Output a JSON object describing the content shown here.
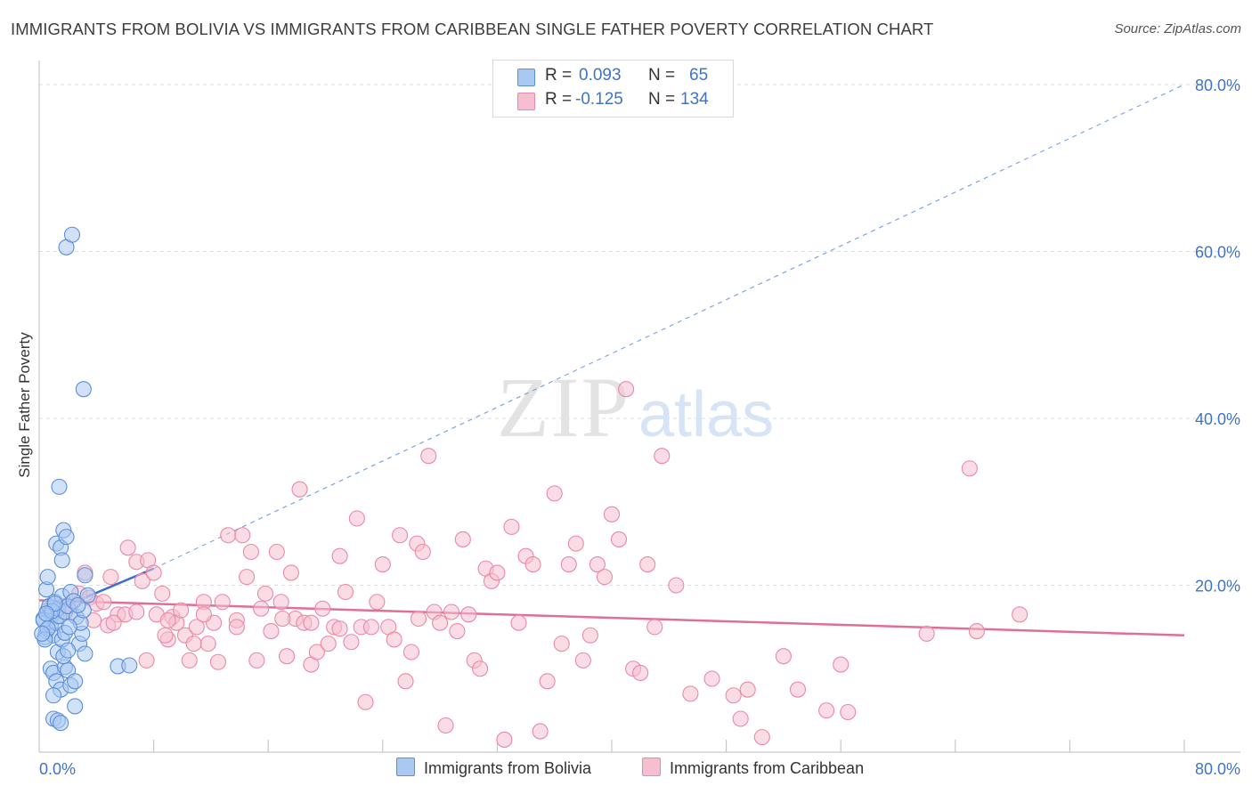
{
  "title": "IMMIGRANTS FROM BOLIVIA VS IMMIGRANTS FROM CARIBBEAN SINGLE FATHER POVERTY CORRELATION CHART",
  "source": "Source: ZipAtlas.com",
  "watermark": {
    "zip": "ZIP",
    "atlas": "atlas"
  },
  "colors": {
    "bolivia_fill": "#a9c8f2",
    "bolivia_stroke": "#5b8fd9",
    "bolivia_line": "#3a6fcb",
    "caribbean_fill": "#f6bfd0",
    "caribbean_stroke": "#e889a8",
    "caribbean_line": "#e06f98",
    "axis_text": "#3f73c9"
  },
  "legend": {
    "rows": [
      {
        "r_label": "R = ",
        "r_value": "0.093",
        "n_label": "N = ",
        "n_value": "65"
      },
      {
        "r_label": "R = ",
        "r_value": "-0.125",
        "n_label": "N = ",
        "n_value": "134"
      }
    ]
  },
  "chart_data": {
    "type": "scatter",
    "title": "IMMIGRANTS FROM BOLIVIA VS IMMIGRANTS FROM CARIBBEAN SINGLE FATHER POVERTY CORRELATION CHART",
    "xlabel": "",
    "ylabel": "Single Father Poverty",
    "xlim": [
      0,
      80
    ],
    "ylim": [
      0,
      80
    ],
    "x_tick_labels": [
      "0.0%",
      "80.0%"
    ],
    "y_tick_labels": [
      "20.0%",
      "40.0%",
      "60.0%",
      "80.0%"
    ],
    "y_ticks": [
      20,
      40,
      60,
      80
    ],
    "x_minor_ticks": [
      8,
      16,
      24,
      32,
      40,
      48,
      56,
      64,
      72,
      80
    ],
    "grid": true,
    "legend_position": "bottom",
    "series": [
      {
        "name": "Immigrants from Bolivia",
        "R": 0.093,
        "N": 65,
        "trend": {
          "x": [
            0,
            8
          ],
          "y": [
            16.2,
            22.0
          ]
        },
        "dashed_extension": {
          "x": [
            8,
            80
          ],
          "y": [
            22.0,
            80.0
          ]
        },
        "points": [
          [
            0.3,
            16.0
          ],
          [
            0.5,
            14.5
          ],
          [
            0.6,
            17.0
          ],
          [
            0.8,
            15.2
          ],
          [
            0.4,
            13.8
          ],
          [
            0.9,
            16.5
          ],
          [
            1.0,
            14.0
          ],
          [
            1.2,
            15.5
          ],
          [
            0.7,
            17.5
          ],
          [
            1.4,
            16.3
          ],
          [
            0.5,
            19.5
          ],
          [
            0.6,
            21.0
          ],
          [
            1.1,
            18.0
          ],
          [
            1.3,
            17.2
          ],
          [
            1.6,
            18.7
          ],
          [
            1.8,
            16.8
          ],
          [
            2.0,
            17.5
          ],
          [
            2.2,
            19.2
          ],
          [
            2.4,
            18.1
          ],
          [
            2.6,
            16.2
          ],
          [
            0.8,
            10.0
          ],
          [
            1.0,
            9.5
          ],
          [
            1.2,
            8.5
          ],
          [
            1.5,
            7.5
          ],
          [
            1.8,
            10.2
          ],
          [
            2.0,
            9.8
          ],
          [
            2.2,
            8.0
          ],
          [
            2.5,
            8.5
          ],
          [
            1.3,
            12.0
          ],
          [
            1.6,
            13.5
          ],
          [
            2.8,
            13.0
          ],
          [
            3.0,
            14.2
          ],
          [
            3.2,
            11.8
          ],
          [
            2.9,
            15.5
          ],
          [
            3.1,
            17.0
          ],
          [
            1.4,
            31.8
          ],
          [
            1.2,
            25.0
          ],
          [
            1.5,
            24.5
          ],
          [
            1.7,
            26.6
          ],
          [
            1.9,
            25.8
          ],
          [
            1.6,
            23.0
          ],
          [
            3.2,
            21.2
          ],
          [
            3.4,
            18.8
          ],
          [
            1.0,
            4.0
          ],
          [
            1.3,
            3.8
          ],
          [
            1.5,
            3.5
          ],
          [
            2.5,
            5.5
          ],
          [
            1.9,
            60.5
          ],
          [
            2.3,
            62.0
          ],
          [
            3.1,
            43.5
          ],
          [
            5.5,
            10.3
          ],
          [
            6.3,
            10.4
          ],
          [
            0.3,
            15.8
          ],
          [
            0.6,
            14.8
          ],
          [
            1.8,
            14.3
          ],
          [
            2.1,
            15.0
          ],
          [
            0.9,
            16.9
          ],
          [
            1.1,
            17.8
          ],
          [
            2.7,
            17.6
          ],
          [
            0.4,
            13.5
          ],
          [
            0.2,
            14.2
          ],
          [
            0.5,
            16.6
          ],
          [
            1.7,
            11.5
          ],
          [
            2.0,
            12.2
          ],
          [
            1.0,
            6.8
          ]
        ]
      },
      {
        "name": "Immigrants from Caribbean",
        "R": -0.125,
        "N": 134,
        "trend": {
          "x": [
            0,
            80
          ],
          "y": [
            18.2,
            14.0
          ]
        },
        "points": [
          [
            0.8,
            17.0
          ],
          [
            1.2,
            16.2
          ],
          [
            1.8,
            17.5
          ],
          [
            2.2,
            16.8
          ],
          [
            2.8,
            19.0
          ],
          [
            3.2,
            21.5
          ],
          [
            3.5,
            18.5
          ],
          [
            4.0,
            17.8
          ],
          [
            4.5,
            18.0
          ],
          [
            4.8,
            15.2
          ],
          [
            5.0,
            21.0
          ],
          [
            5.5,
            16.5
          ],
          [
            6.2,
            24.5
          ],
          [
            6.8,
            22.8
          ],
          [
            7.2,
            20.5
          ],
          [
            7.6,
            23.0
          ],
          [
            8.0,
            21.5
          ],
          [
            6.0,
            16.5
          ],
          [
            6.8,
            16.8
          ],
          [
            7.5,
            11.0
          ],
          [
            8.2,
            16.5
          ],
          [
            8.6,
            19.0
          ],
          [
            9.0,
            13.5
          ],
          [
            9.3,
            16.2
          ],
          [
            9.6,
            15.5
          ],
          [
            9.9,
            17.0
          ],
          [
            10.2,
            14.0
          ],
          [
            10.5,
            11.0
          ],
          [
            11.0,
            15.0
          ],
          [
            11.5,
            18.0
          ],
          [
            11.8,
            13.0
          ],
          [
            12.2,
            15.5
          ],
          [
            12.8,
            18.0
          ],
          [
            13.2,
            26.0
          ],
          [
            13.8,
            15.8
          ],
          [
            14.2,
            26.0
          ],
          [
            14.5,
            21.0
          ],
          [
            14.8,
            24.0
          ],
          [
            15.2,
            11.0
          ],
          [
            15.5,
            17.2
          ],
          [
            15.8,
            19.0
          ],
          [
            16.2,
            14.5
          ],
          [
            16.6,
            24.0
          ],
          [
            16.9,
            18.0
          ],
          [
            17.3,
            11.5
          ],
          [
            17.6,
            21.5
          ],
          [
            17.9,
            16.0
          ],
          [
            18.2,
            31.5
          ],
          [
            18.5,
            15.5
          ],
          [
            19.0,
            10.5
          ],
          [
            19.4,
            12.0
          ],
          [
            19.8,
            17.2
          ],
          [
            20.2,
            13.0
          ],
          [
            20.6,
            15.0
          ],
          [
            21.0,
            23.5
          ],
          [
            21.4,
            19.2
          ],
          [
            21.8,
            13.2
          ],
          [
            22.2,
            28.0
          ],
          [
            22.5,
            15.0
          ],
          [
            22.8,
            6.0
          ],
          [
            23.2,
            15.0
          ],
          [
            23.6,
            18.0
          ],
          [
            24.0,
            22.5
          ],
          [
            24.4,
            15.0
          ],
          [
            24.8,
            13.5
          ],
          [
            25.2,
            26.0
          ],
          [
            25.6,
            8.5
          ],
          [
            26.0,
            12.0
          ],
          [
            26.4,
            25.0
          ],
          [
            26.8,
            24.0
          ],
          [
            27.2,
            35.5
          ],
          [
            27.6,
            16.8
          ],
          [
            28.0,
            15.5
          ],
          [
            28.4,
            3.2
          ],
          [
            28.8,
            16.8
          ],
          [
            29.2,
            14.5
          ],
          [
            29.6,
            25.5
          ],
          [
            30.0,
            16.5
          ],
          [
            30.4,
            11.0
          ],
          [
            30.8,
            10.0
          ],
          [
            31.2,
            22.0
          ],
          [
            31.6,
            20.5
          ],
          [
            32.0,
            21.5
          ],
          [
            32.5,
            1.5
          ],
          [
            33.0,
            27.0
          ],
          [
            33.5,
            15.5
          ],
          [
            34.0,
            23.5
          ],
          [
            34.5,
            22.5
          ],
          [
            35.0,
            2.5
          ],
          [
            35.5,
            8.5
          ],
          [
            36.0,
            31.0
          ],
          [
            36.5,
            13.0
          ],
          [
            37.0,
            22.5
          ],
          [
            37.5,
            25.0
          ],
          [
            38.0,
            11.0
          ],
          [
            38.5,
            14.0
          ],
          [
            39.0,
            22.5
          ],
          [
            39.5,
            21.0
          ],
          [
            40.0,
            28.5
          ],
          [
            40.5,
            25.5
          ],
          [
            41.0,
            43.5
          ],
          [
            41.5,
            10.0
          ],
          [
            42.0,
            9.5
          ],
          [
            42.5,
            22.5
          ],
          [
            43.0,
            15.0
          ],
          [
            43.5,
            35.5
          ],
          [
            44.5,
            20.0
          ],
          [
            45.5,
            7.0
          ],
          [
            47.0,
            8.8
          ],
          [
            48.5,
            6.8
          ],
          [
            49.0,
            4.0
          ],
          [
            49.5,
            7.5
          ],
          [
            50.5,
            1.8
          ],
          [
            52.0,
            11.5
          ],
          [
            53.0,
            7.5
          ],
          [
            55.0,
            5.0
          ],
          [
            56.0,
            10.5
          ],
          [
            56.5,
            4.8
          ],
          [
            62.0,
            14.2
          ],
          [
            65.0,
            34.0
          ],
          [
            65.5,
            14.5
          ],
          [
            68.5,
            16.5
          ],
          [
            9.0,
            15.8
          ],
          [
            12.5,
            10.8
          ],
          [
            21.0,
            14.8
          ],
          [
            17.0,
            16.0
          ],
          [
            11.5,
            16.5
          ],
          [
            13.8,
            15.0
          ],
          [
            26.5,
            16.0
          ],
          [
            19.0,
            15.5
          ],
          [
            3.8,
            15.8
          ],
          [
            5.2,
            15.5
          ],
          [
            8.8,
            14.0
          ],
          [
            10.8,
            13.0
          ]
        ]
      }
    ]
  },
  "bottom_legend": [
    {
      "label": "Immigrants from Bolivia"
    },
    {
      "label": "Immigrants from Caribbean"
    }
  ]
}
